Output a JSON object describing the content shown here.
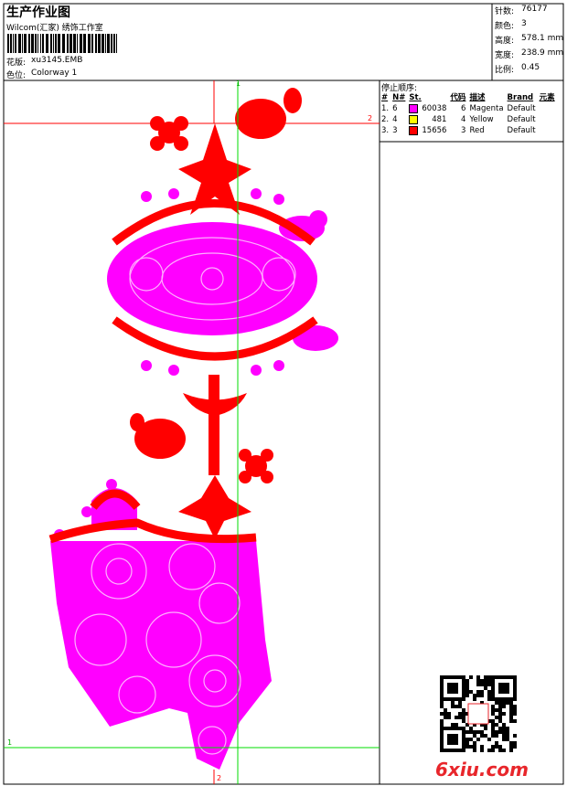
{
  "header": {
    "title": "生产作业图",
    "studio": "Wilcom(汇家) 绣饰工作室",
    "design_label": "花版:",
    "design": "xu3145.EMB",
    "colorway_label": "色位:",
    "colorway": "Colorway 1"
  },
  "stats": [
    {
      "label": "针数:",
      "value": "76177"
    },
    {
      "label": "颜色:",
      "value": "3"
    },
    {
      "label": "高度:",
      "value": "578.1 mm"
    },
    {
      "label": "宽度:",
      "value": "238.9 mm"
    },
    {
      "label": "比例:",
      "value": "0.45"
    }
  ],
  "sequence": {
    "title": "停止顺序:",
    "columns": [
      "#",
      "N#",
      "St.",
      "代码",
      "描述",
      "Brand",
      "元素"
    ],
    "rows": [
      {
        "index": "1.",
        "n": "6",
        "color": "#ff00ff",
        "stitches": "60038",
        "code": "6",
        "desc": "Magenta",
        "brand": "Default"
      },
      {
        "index": "2.",
        "n": "4",
        "color": "#ffff00",
        "stitches": "481",
        "code": "4",
        "desc": "Yellow",
        "brand": "Default"
      },
      {
        "index": "3.",
        "n": "3",
        "color": "#ff0000",
        "stitches": "15656",
        "code": "3",
        "desc": "Red",
        "brand": "Default"
      }
    ]
  },
  "guides": {
    "top": "1",
    "right": "2",
    "bottom": "2",
    "left": "1"
  },
  "watermark": "6xiu.com"
}
